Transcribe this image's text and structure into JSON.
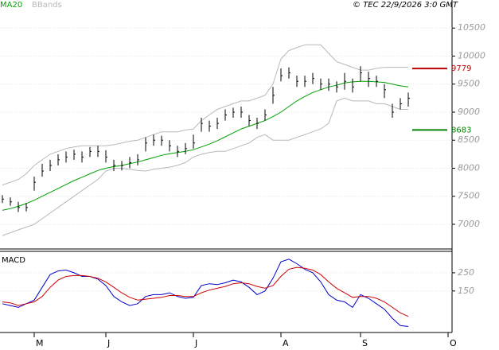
{
  "source": "© TEC 22/9/2026 3:0 GMT",
  "chart_data": [
    {
      "type": "ohlc",
      "legend": [
        "MA20",
        "BBands"
      ],
      "ylim": [
        6560,
        11000
      ],
      "yticks": [
        7000,
        7500,
        8000,
        8500,
        9000,
        9500,
        10000,
        10500
      ],
      "grid": true,
      "bar_color": "#000000",
      "high": [
        7520,
        7480,
        7400,
        7380,
        7850,
        8080,
        8150,
        8250,
        8300,
        8330,
        8300,
        8380,
        8400,
        8320,
        8150,
        8130,
        8200,
        8250,
        8550,
        8600,
        8580,
        8500,
        8400,
        8450,
        8600,
        8900,
        8850,
        8900,
        9050,
        9080,
        9100,
        8950,
        8900,
        9050,
        9450,
        9780,
        9800,
        9650,
        9650,
        9700,
        9600,
        9600,
        9550,
        9700,
        9600,
        9820,
        9720,
        9650,
        9500,
        9150,
        9250,
        9350
      ],
      "low": [
        7380,
        7330,
        7220,
        7230,
        7600,
        7850,
        7950,
        8050,
        8100,
        8150,
        8100,
        8200,
        8200,
        8100,
        7950,
        7960,
        8000,
        8050,
        8300,
        8400,
        8400,
        8300,
        8200,
        8250,
        8350,
        8650,
        8650,
        8700,
        8850,
        8900,
        8900,
        8750,
        8700,
        8850,
        9150,
        9550,
        9600,
        9450,
        9450,
        9500,
        9400,
        9380,
        9350,
        9400,
        9350,
        9550,
        9450,
        9450,
        9250,
        8900,
        9050,
        9100
      ],
      "close": [
        7450,
        7400,
        7300,
        7300,
        7750,
        7950,
        8050,
        8150,
        8200,
        8250,
        8200,
        8300,
        8300,
        8200,
        8050,
        8050,
        8100,
        8150,
        8450,
        8500,
        8500,
        8400,
        8300,
        8350,
        8450,
        8800,
        8750,
        8800,
        8950,
        9000,
        9000,
        8850,
        8800,
        8950,
        9300,
        9650,
        9700,
        9550,
        9550,
        9600,
        9500,
        9500,
        9450,
        9550,
        9450,
        9700,
        9600,
        9550,
        9400,
        9000,
        9150,
        9250
      ],
      "series": [
        {
          "name": "MA20",
          "color": "#00a000",
          "values": [
            7250,
            7280,
            7320,
            7370,
            7430,
            7500,
            7570,
            7640,
            7710,
            7780,
            7840,
            7900,
            7960,
            8000,
            8030,
            8050,
            8080,
            8110,
            8150,
            8190,
            8230,
            8260,
            8280,
            8300,
            8330,
            8380,
            8430,
            8490,
            8560,
            8630,
            8700,
            8750,
            8800,
            8850,
            8920,
            9000,
            9100,
            9200,
            9280,
            9350,
            9400,
            9450,
            9480,
            9520,
            9540,
            9550,
            9550,
            9540,
            9530,
            9500,
            9470,
            9450
          ]
        },
        {
          "name": "BBands",
          "color": "#b8b8b8",
          "upper": [
            7700,
            7750,
            7800,
            7900,
            8050,
            8150,
            8250,
            8300,
            8350,
            8380,
            8400,
            8400,
            8400,
            8400,
            8420,
            8450,
            8480,
            8500,
            8550,
            8600,
            8650,
            8650,
            8650,
            8680,
            8700,
            8850,
            8950,
            9050,
            9100,
            9150,
            9200,
            9200,
            9250,
            9300,
            9500,
            9950,
            10100,
            10150,
            10200,
            10200,
            10200,
            10050,
            9900,
            9850,
            9800,
            9750,
            9750,
            9780,
            9800,
            9800,
            9800,
            9800
          ],
          "lower": [
            6800,
            6850,
            6900,
            6950,
            7000,
            7100,
            7200,
            7300,
            7400,
            7500,
            7600,
            7700,
            7800,
            7950,
            8000,
            8000,
            7980,
            7960,
            7950,
            7980,
            8000,
            8020,
            8050,
            8100,
            8200,
            8250,
            8280,
            8300,
            8300,
            8350,
            8400,
            8450,
            8550,
            8600,
            8500,
            8500,
            8500,
            8550,
            8600,
            8650,
            8700,
            8800,
            9200,
            9250,
            9200,
            9200,
            9200,
            9150,
            9150,
            9100,
            9050,
            9050
          ]
        }
      ],
      "levels": [
        {
          "value": 9779,
          "color": "#c00000"
        },
        {
          "value": 8683,
          "color": "#008000"
        }
      ]
    },
    {
      "type": "line",
      "title": "MACD",
      "ylim": [
        -65,
        359
      ],
      "yticks": [
        150,
        250
      ],
      "grid": true,
      "categories": [
        null,
        null,
        null,
        null,
        "M",
        null,
        null,
        null,
        null,
        null,
        null,
        null,
        null,
        "J",
        null,
        null,
        null,
        null,
        null,
        null,
        null,
        null,
        null,
        null,
        "J",
        null,
        null,
        null,
        null,
        null,
        null,
        null,
        null,
        null,
        null,
        "A",
        null,
        null,
        null,
        null,
        null,
        null,
        null,
        null,
        null,
        "S",
        null,
        null,
        null,
        null,
        null,
        null,
        null,
        null,
        null,
        null,
        "O"
      ],
      "series": [
        {
          "color": "#0000cc",
          "values": [
            80,
            70,
            60,
            80,
            100,
            170,
            240,
            260,
            265,
            250,
            230,
            230,
            215,
            180,
            120,
            90,
            70,
            80,
            120,
            130,
            130,
            140,
            120,
            110,
            115,
            180,
            190,
            185,
            195,
            210,
            200,
            170,
            130,
            150,
            220,
            310,
            325,
            300,
            270,
            250,
            200,
            130,
            100,
            90,
            60,
            130,
            110,
            80,
            50,
            0,
            -40,
            -45,
            null,
            null,
            null,
            null,
            null
          ]
        },
        {
          "color": "#cc0000",
          "values": [
            90,
            85,
            70,
            80,
            90,
            120,
            170,
            210,
            230,
            235,
            235,
            230,
            220,
            200,
            170,
            140,
            115,
            100,
            105,
            110,
            115,
            125,
            125,
            120,
            120,
            140,
            155,
            165,
            175,
            190,
            195,
            190,
            175,
            165,
            180,
            230,
            270,
            280,
            275,
            265,
            240,
            200,
            165,
            140,
            115,
            120,
            120,
            110,
            90,
            60,
            30,
            10,
            null,
            null,
            null,
            null,
            null
          ]
        }
      ]
    }
  ]
}
